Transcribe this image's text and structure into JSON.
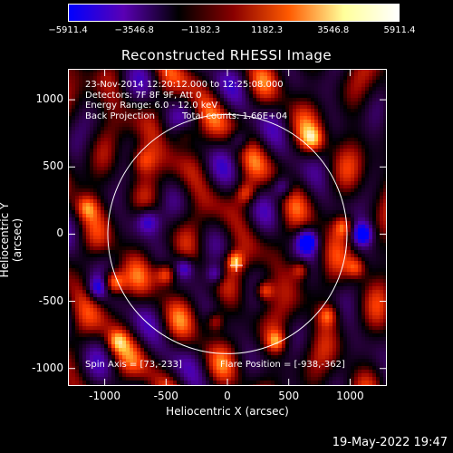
{
  "colorbar": {
    "ticks": [
      "−5911.4",
      "−3546.8",
      "−1182.3",
      "1182.3",
      "3546.8",
      "5911.4"
    ],
    "colors": [
      "#0000ff",
      "#5a00b4",
      "#000000",
      "#8a0000",
      "#ff5a00",
      "#ffff9a",
      "#ffffff"
    ]
  },
  "title": "Reconstructed RHESSI Image",
  "info": {
    "time_range": "23-Nov-2014 12:20:12.000 to 12:25:08.000",
    "detectors": "Detectors: 7F 8F 9F, Att 0",
    "energy": "Energy Range: 6.0 - 12.0 keV",
    "method": "Back Projection",
    "counts": "Total counts: 1.66E+04",
    "spin_axis": "Spin Axis = [73,-233]",
    "flare_position": "Flare Position = [-938,-362]"
  },
  "axes": {
    "xlabel": "Heliocentric X (arcsec)",
    "ylabel": "Heliocentric Y (arcsec)",
    "xlim": [
      -1300,
      1300
    ],
    "ylim": [
      -1130,
      1230
    ],
    "xticks": [
      "-1000",
      "-500",
      "0",
      "500",
      "1000"
    ],
    "yticks": [
      "1000",
      "500",
      "0",
      "-500",
      "-1000"
    ]
  },
  "chart_data": {
    "type": "heatmap",
    "title": "Reconstructed RHESSI Image",
    "xlabel": "Heliocentric X (arcsec)",
    "ylabel": "Heliocentric Y (arcsec)",
    "xlim": [
      -1300,
      1300
    ],
    "ylim": [
      -1130,
      1230
    ],
    "color_range": [
      -5911.4,
      5911.4
    ],
    "solar_disk_radius": 975,
    "spin_axis": [
      73,
      -233
    ],
    "flare_position": [
      -938,
      -362
    ]
  },
  "datestamp": "19-May-2022 19:47"
}
